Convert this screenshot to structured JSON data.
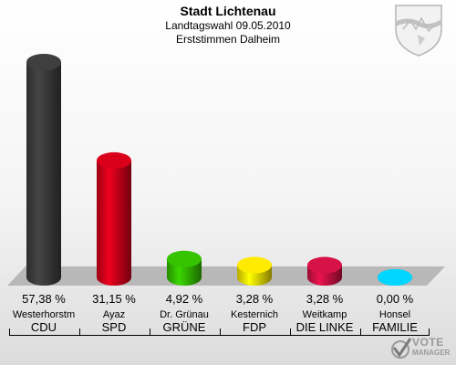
{
  "header": {
    "title": "Stadt Lichtenau",
    "line2": "Landtagswahl 09.05.2010",
    "line3": "Erststimmen Dalheim"
  },
  "chart_data": {
    "type": "bar",
    "categories": [
      "CDU",
      "SPD",
      "GRÜNE",
      "FDP",
      "DIE LINKE",
      "FAMILIE"
    ],
    "candidates": [
      "Westerhorstm",
      "Ayaz",
      "Dr. Grünau",
      "Kesternich",
      "Weitkamp",
      "Honsel"
    ],
    "values": [
      57.38,
      31.15,
      4.92,
      3.28,
      3.28,
      0.0
    ],
    "value_labels": [
      "57,38 %",
      "31,15 %",
      "4,92 %",
      "3,28 %",
      "3,28 %",
      "0,00 %"
    ],
    "colors": [
      "#3c3c3c",
      "#d0001a",
      "#33bb00",
      "#f4e000",
      "#cc1144",
      "#00ccff"
    ],
    "ylim": [
      0,
      60
    ],
    "grid": false,
    "legend": "none"
  },
  "logo": {
    "line1": "VOTE",
    "line2": "MANAGER"
  },
  "icons": {
    "crest": "coat-of-arms-icon",
    "logo_mark": "checkmark-icon"
  }
}
